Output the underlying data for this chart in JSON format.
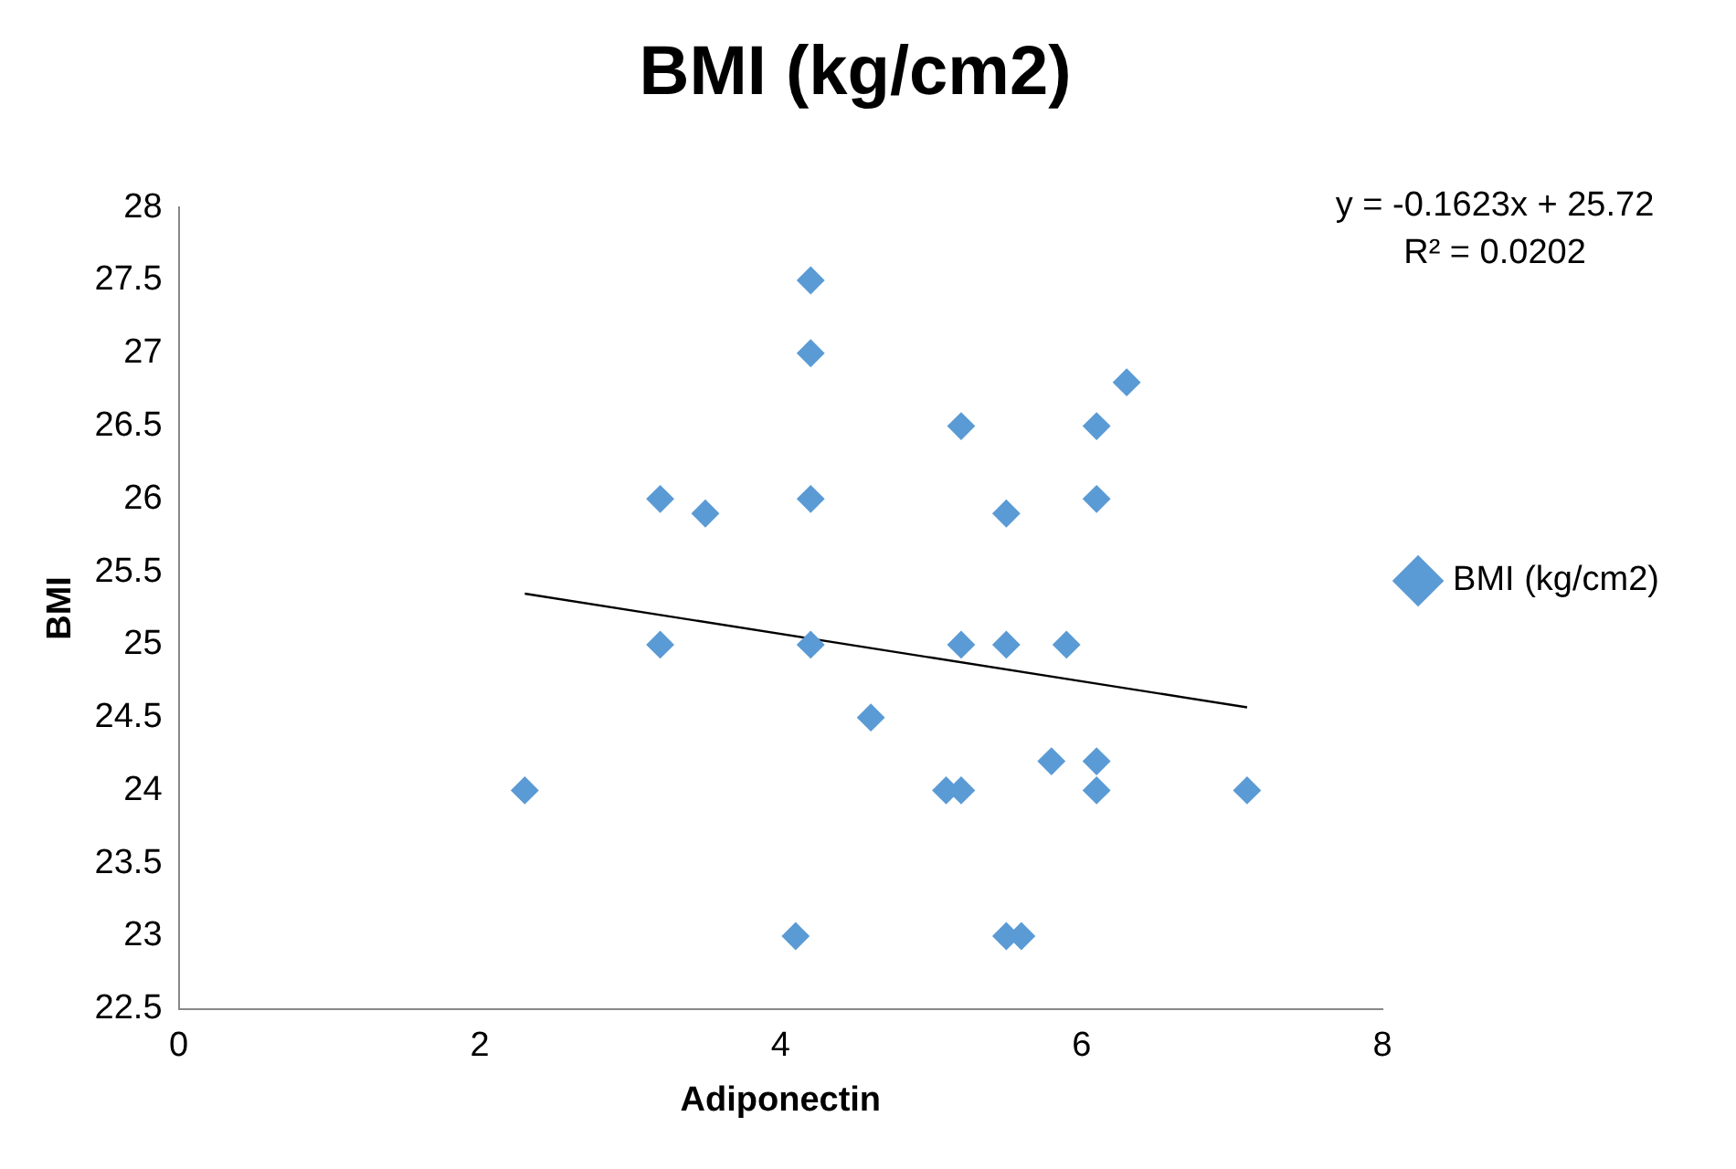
{
  "chart_data": {
    "type": "scatter",
    "title": "BMI (kg/cm2)",
    "xlabel": "Adiponectin",
    "ylabel": "BMI",
    "xlim": [
      0,
      8
    ],
    "xticks": [
      0,
      2,
      4,
      6,
      8
    ],
    "ylim": [
      22.5,
      28
    ],
    "yticks": [
      22.5,
      23,
      23.5,
      24,
      24.5,
      25,
      25.5,
      26,
      26.5,
      27,
      27.5,
      28
    ],
    "grid": false,
    "legend": "right",
    "marker": "diamond",
    "annotations": [
      "y = -0.1623x + 25.72",
      "R² = 0.0202"
    ],
    "series": [
      {
        "name": "BMI (kg/cm2)",
        "color": "#5b9bd5",
        "x": [
          2.3,
          3.2,
          3.2,
          3.5,
          4.2,
          4.2,
          4.2,
          4.2,
          4.1,
          4.6,
          5.1,
          5.2,
          5.2,
          5.2,
          5.5,
          5.5,
          5.5,
          5.6,
          5.9,
          5.8,
          6.1,
          6.1,
          6.1,
          6.1,
          6.3,
          7.1
        ],
        "values": [
          24,
          26,
          25,
          25.9,
          27.5,
          27,
          26,
          25,
          23,
          24.5,
          24,
          24,
          26.5,
          25,
          25.9,
          25,
          23,
          23,
          25,
          24.2,
          26.5,
          26,
          24.2,
          24,
          26.8,
          24
        ]
      },
      {
        "type": "line",
        "color": "#000000",
        "marker": "none",
        "x": [
          2.3,
          7.1
        ],
        "values": [
          25.35,
          24.57
        ]
      }
    ]
  }
}
